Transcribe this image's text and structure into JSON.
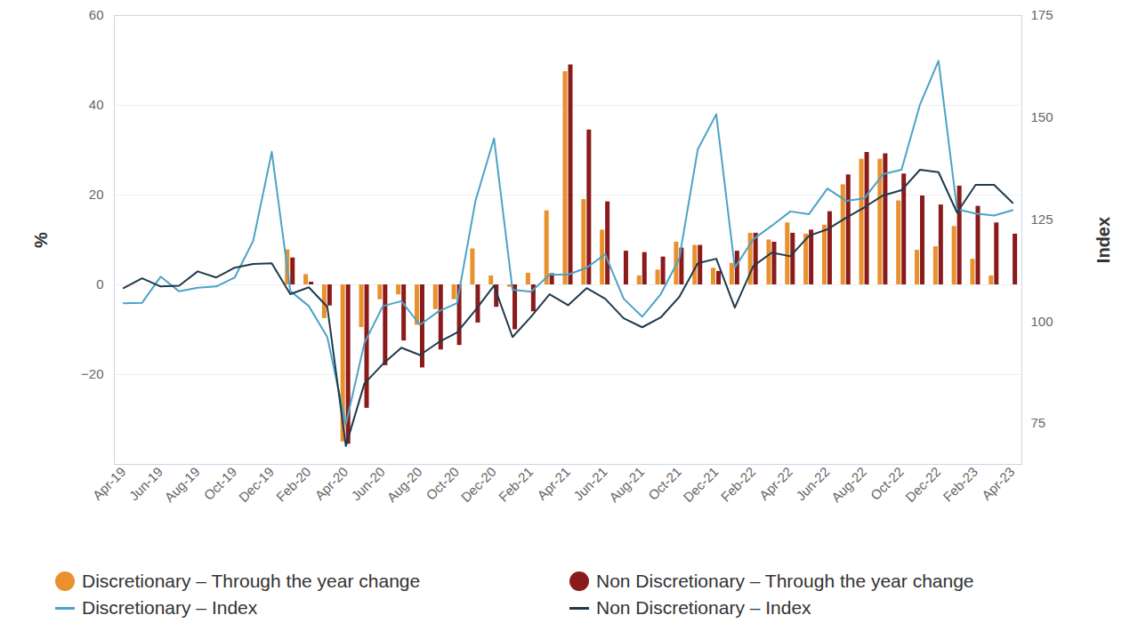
{
  "chart_data": {
    "type": "bar",
    "categories": [
      "Apr-19",
      null,
      "Jun-19",
      null,
      "Aug-19",
      null,
      "Oct-19",
      null,
      "Dec-19",
      null,
      "Feb-20",
      null,
      "Apr-20",
      null,
      "Jun-20",
      null,
      "Aug-20",
      null,
      "Oct-20",
      null,
      "Dec-20",
      null,
      "Feb-21",
      null,
      "Apr-21",
      null,
      "Jun-21",
      null,
      "Aug-21",
      null,
      "Oct-21",
      null,
      "Dec-21",
      null,
      "Feb-22",
      null,
      "Apr-22",
      null,
      "Jun-22",
      null,
      "Aug-22",
      null,
      "Oct-22",
      null,
      "Dec-22",
      null,
      "Feb-23",
      null,
      "Apr-23"
    ],
    "ylabel": "%",
    "y2label": "Index",
    "ylim": [
      -40,
      60
    ],
    "yticks": [
      -20,
      0,
      20,
      40,
      60
    ],
    "y2lim": [
      65,
      175
    ],
    "y2ticks": [
      75,
      100,
      125,
      150,
      175
    ],
    "grid": true,
    "legend": "bottom",
    "series": [
      {
        "name": "Discretionary – Through the year change",
        "type": "bar",
        "color": "#E8912D",
        "values": [
          null,
          null,
          null,
          null,
          null,
          null,
          null,
          null,
          null,
          7.8,
          2.3,
          -7.5,
          -35,
          -9.5,
          -3.3,
          -2.2,
          -9,
          -5.5,
          -3.3,
          8,
          2,
          -0.5,
          2.6,
          16.5,
          47.5,
          19,
          12.2,
          0,
          2,
          3.3,
          9.5,
          8.8,
          3.7,
          4.8,
          11.5,
          10,
          13.8,
          11.3,
          13.3,
          22.3,
          28,
          28,
          18.7,
          7.7,
          8.5,
          13,
          5.7,
          2,
          0
        ]
      },
      {
        "name": "Non Discretionary – Through the year change",
        "type": "bar",
        "color": "#8B1A1A",
        "values": [
          null,
          null,
          null,
          null,
          null,
          null,
          null,
          null,
          null,
          6,
          0.6,
          -4.7,
          -35.5,
          -27.5,
          -18,
          -12.5,
          -18.5,
          -14.5,
          -13.5,
          -8.5,
          -5,
          -10,
          -6,
          2.5,
          49,
          34.5,
          18.5,
          7.5,
          7.2,
          6.2,
          8.2,
          8.8,
          3,
          7.5,
          11.5,
          9.5,
          11.5,
          12.2,
          16.3,
          24.5,
          29.5,
          29.2,
          24.7,
          19.8,
          17.8,
          22,
          17.5,
          13.8,
          11.3
        ]
      },
      {
        "name": "Discretionary – Index",
        "type": "line",
        "axis": "y2",
        "color": "#4BA3C7",
        "values": [
          104.5,
          104.6,
          111,
          107.4,
          108.3,
          108.6,
          110.8,
          119.8,
          141.6,
          107.5,
          103.8,
          96.2,
          74.8,
          94.7,
          103.8,
          105,
          99.2,
          102.5,
          104.5,
          129.6,
          144.9,
          107.8,
          107.3,
          111.5,
          111.5,
          113.2,
          116.5,
          105.6,
          101.2,
          106.7,
          115.4,
          142.2,
          150.8,
          113.2,
          120.2,
          123.5,
          127,
          126.3,
          132.6,
          129.6,
          130.2,
          136.1,
          137.2,
          153.2,
          163.9,
          127.5,
          126.5,
          126,
          127.3
        ]
      },
      {
        "name": "Non Discretionary – Index",
        "type": "line",
        "axis": "y2",
        "color": "#1F3A4D",
        "values": [
          108.2,
          110.6,
          108.6,
          108.8,
          112.3,
          110.8,
          113.2,
          114.1,
          114.3,
          106.7,
          108.4,
          103.6,
          69.5,
          84.8,
          89.6,
          93.6,
          91.8,
          94.9,
          97.3,
          102.8,
          108.8,
          96.2,
          101.2,
          106.7,
          104,
          108.2,
          105.6,
          100.8,
          98.6,
          101,
          106,
          114.3,
          115.4,
          103.4,
          113.6,
          116.9,
          116,
          121,
          122.6,
          125.4,
          128,
          130.9,
          132.2,
          137.2,
          136.6,
          126.7,
          133.5,
          133.5,
          129.1
        ]
      }
    ]
  }
}
